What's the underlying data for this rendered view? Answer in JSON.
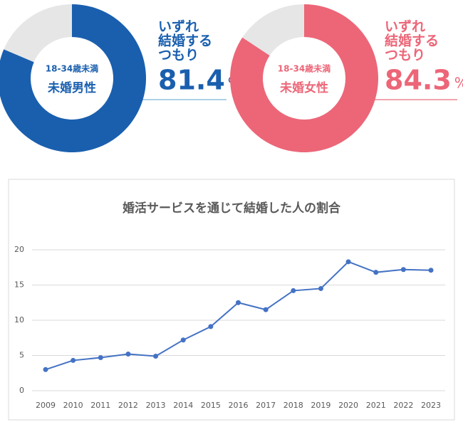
{
  "chart_data": [
    {
      "type": "donut",
      "center_subtitle": "18-34歳未満",
      "center_title": "未婚男性",
      "caption": [
        "いずれ",
        "結婚する",
        "つもり"
      ],
      "unit": "%",
      "values": [
        81.4,
        18.6
      ],
      "colors": [
        "#1a5fae",
        "#e6e6e6"
      ]
    },
    {
      "type": "donut",
      "center_subtitle": "18-34歳未満",
      "center_title": "未婚女性",
      "caption": [
        "いずれ",
        "結婚する",
        "つもり"
      ],
      "unit": "%",
      "values": [
        84.3,
        15.7
      ],
      "colors": [
        "#ec6678",
        "#e6e6e6"
      ]
    },
    {
      "type": "line",
      "title": "婚活サービスを通じて結婚した人の割合",
      "categories": [
        "2009",
        "2010",
        "2011",
        "2012",
        "2013",
        "2014",
        "2015",
        "2016",
        "2017",
        "2018",
        "2019",
        "2020",
        "2021",
        "2022",
        "2023"
      ],
      "values": [
        3.0,
        4.3,
        4.7,
        5.2,
        4.9,
        7.2,
        9.1,
        12.5,
        11.5,
        14.2,
        14.5,
        18.3,
        16.8,
        17.2,
        17.1
      ],
      "color": "#4472c4",
      "ylim": [
        0,
        20
      ],
      "yticks": [
        0,
        5,
        10,
        15,
        20
      ],
      "grid": true
    }
  ]
}
